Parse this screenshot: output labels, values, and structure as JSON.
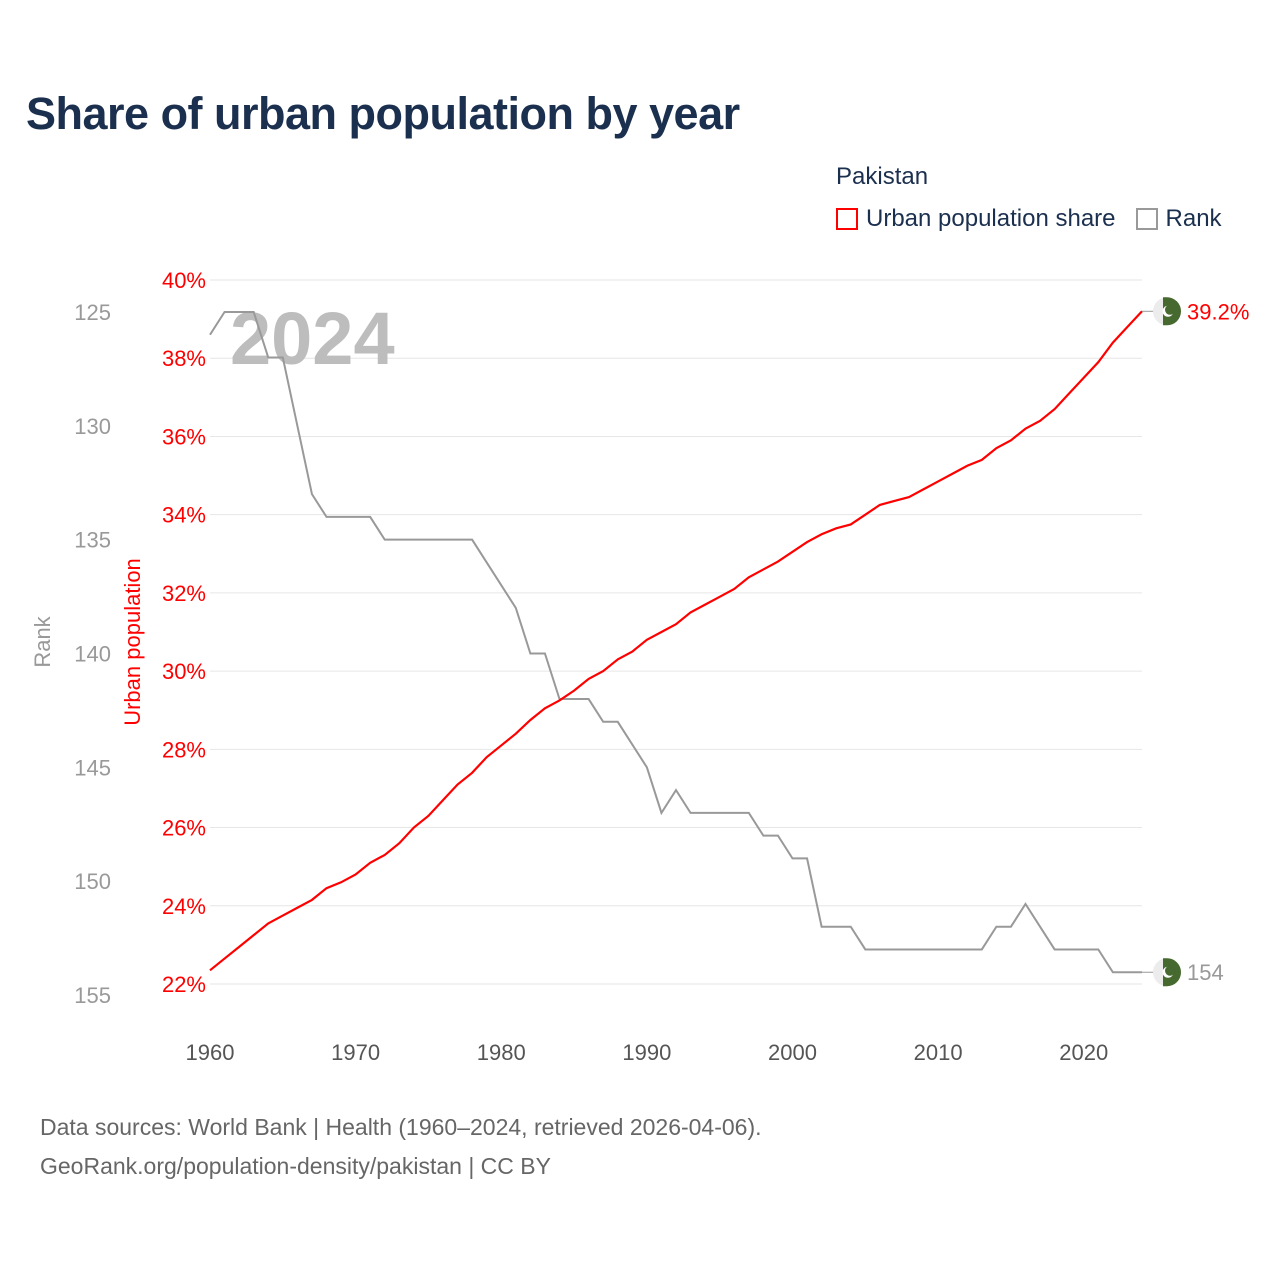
{
  "title": "Share of urban population by year",
  "legend": {
    "title": "Pakistan",
    "items": [
      {
        "label": "Urban population share",
        "color": "#ff0000"
      },
      {
        "label": "Rank",
        "color": "#999999"
      }
    ]
  },
  "source": {
    "line1": "Data sources: World Bank | Health (1960–2024, retrieved 2026-04-06).",
    "line2": "GeoRank.org/population-density/pakistan | CC BY"
  },
  "chart_data": {
    "type": "line",
    "title": "Share of urban population by year",
    "year_watermark": "2024",
    "x": [
      1960,
      1961,
      1962,
      1963,
      1964,
      1965,
      1966,
      1967,
      1968,
      1969,
      1970,
      1971,
      1972,
      1973,
      1974,
      1975,
      1976,
      1977,
      1978,
      1979,
      1980,
      1981,
      1982,
      1983,
      1984,
      1985,
      1986,
      1987,
      1988,
      1989,
      1990,
      1991,
      1992,
      1993,
      1994,
      1995,
      1996,
      1997,
      1998,
      1999,
      2000,
      2001,
      2002,
      2003,
      2004,
      2005,
      2006,
      2007,
      2008,
      2009,
      2010,
      2011,
      2012,
      2013,
      2014,
      2015,
      2016,
      2017,
      2018,
      2019,
      2020,
      2021,
      2022,
      2023,
      2024
    ],
    "xlim": [
      1960,
      2024
    ],
    "xticks": [
      "1960",
      "1970",
      "1980",
      "1990",
      "2000",
      "2010",
      "2020"
    ],
    "series": [
      {
        "name": "Urban population share",
        "axis": "left",
        "ylabel": "Urban population",
        "color": "#ff0000",
        "ylim": [
          22,
          40
        ],
        "yticks": [
          "22%",
          "24%",
          "26%",
          "28%",
          "30%",
          "32%",
          "34%",
          "36%",
          "38%",
          "40%"
        ],
        "end_label": "39.2%",
        "values": [
          22.35,
          22.65,
          22.95,
          23.25,
          23.55,
          23.75,
          23.95,
          24.15,
          24.45,
          24.6,
          24.8,
          25.1,
          25.3,
          25.6,
          26.0,
          26.3,
          26.7,
          27.1,
          27.4,
          27.8,
          28.1,
          28.4,
          28.75,
          29.05,
          29.25,
          29.5,
          29.8,
          30.0,
          30.3,
          30.5,
          30.8,
          31.0,
          31.2,
          31.5,
          31.7,
          31.9,
          32.1,
          32.4,
          32.6,
          32.8,
          33.05,
          33.3,
          33.5,
          33.65,
          33.75,
          34.0,
          34.25,
          34.35,
          34.45,
          34.65,
          34.85,
          35.05,
          35.25,
          35.4,
          35.7,
          35.9,
          36.2,
          36.4,
          36.7,
          37.1,
          37.5,
          37.9,
          38.4,
          38.8,
          39.2
        ]
      },
      {
        "name": "Rank",
        "axis": "outer-left",
        "ylabel": "Rank",
        "color": "#999999",
        "ylim": [
          125,
          155
        ],
        "inverted": true,
        "yticks": [
          "125",
          "130",
          "135",
          "140",
          "145",
          "150",
          "155"
        ],
        "end_label": "154",
        "values": [
          126,
          125,
          125,
          125,
          127,
          127,
          130,
          133,
          134,
          134,
          134,
          134,
          135,
          135,
          135,
          135,
          135,
          135,
          135,
          136,
          137,
          138,
          140,
          140,
          142,
          142,
          142,
          143,
          143,
          144,
          145,
          147,
          146,
          147,
          147,
          147,
          147,
          147,
          148,
          148,
          149,
          149,
          152,
          152,
          152,
          153,
          153,
          153,
          153,
          153,
          153,
          153,
          153,
          153,
          152,
          152,
          151,
          152,
          153,
          153,
          153,
          153,
          154,
          154,
          154
        ]
      }
    ]
  }
}
